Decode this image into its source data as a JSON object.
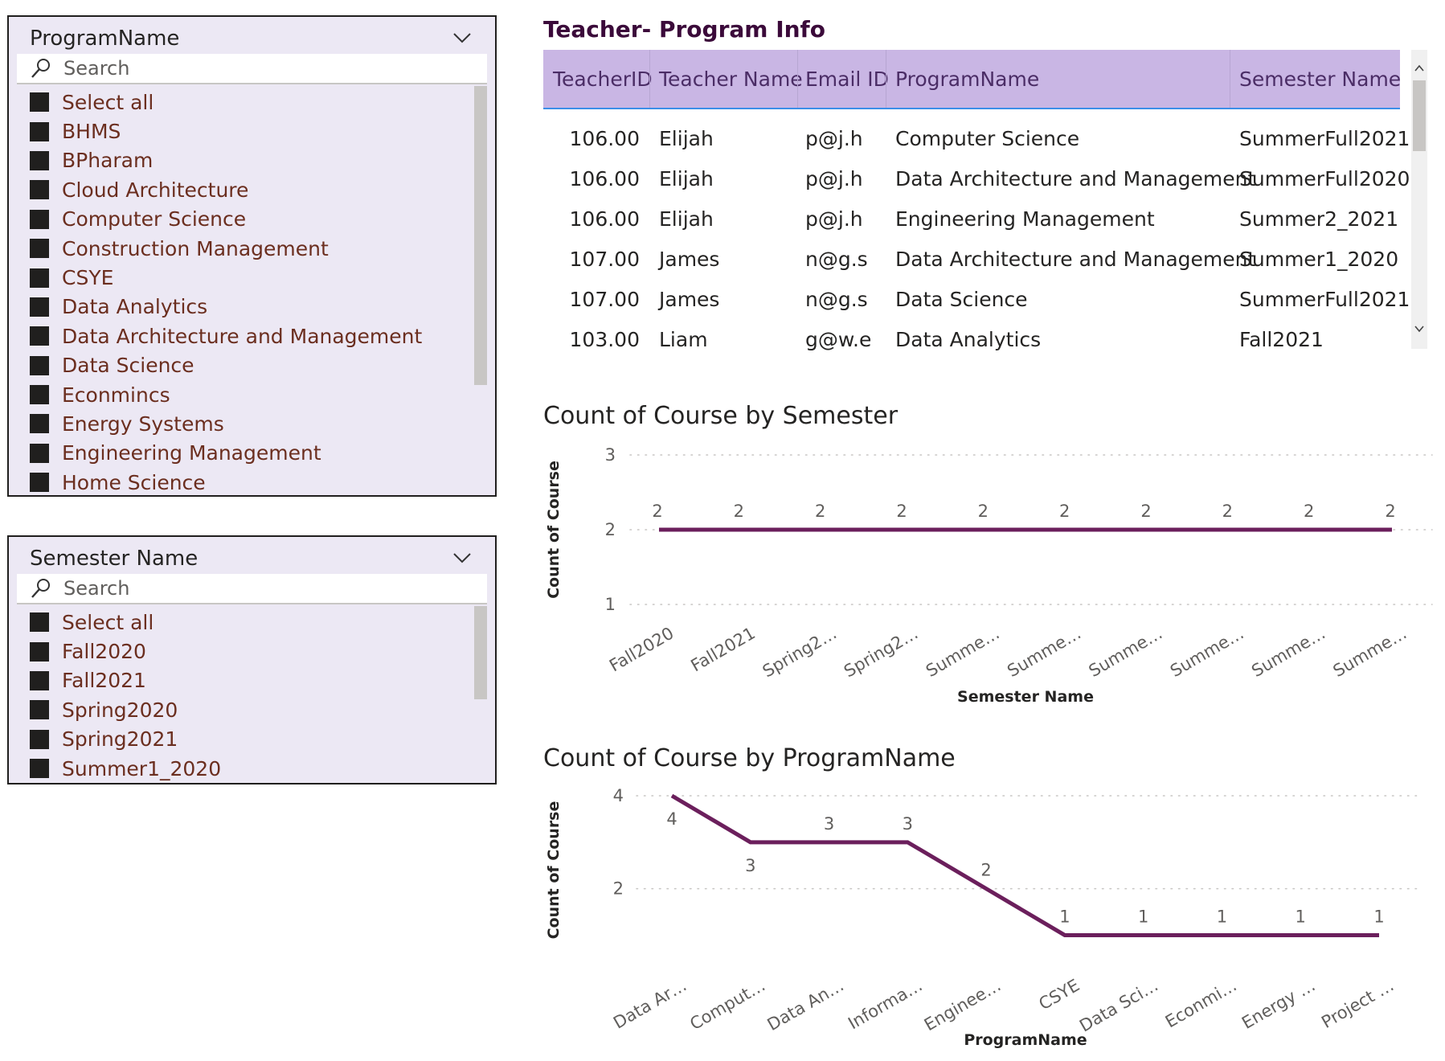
{
  "program_slicer": {
    "title": "ProgramName",
    "search_placeholder": "Search",
    "items": [
      "Select all",
      "BHMS",
      "BPharam",
      "Cloud Architecture",
      "Computer Science",
      "Construction Management",
      "CSYE",
      "Data Analytics",
      "Data Architecture and Management",
      "Data Science",
      "Econmincs",
      "Energy Systems",
      "Engineering Management",
      "Home Science"
    ]
  },
  "semester_slicer": {
    "title": "Semester Name",
    "search_placeholder": "Search",
    "items": [
      "Select all",
      "Fall2020",
      "Fall2021",
      "Spring2020",
      "Spring2021",
      "Summer1_2020"
    ]
  },
  "teacher_table": {
    "title": "Teacher- Program Info",
    "columns": [
      "TeacherID",
      "Teacher Name",
      "Email ID",
      "ProgramName",
      "Semester Name"
    ],
    "rows": [
      [
        "106.00",
        "Elijah",
        "p@j.h",
        "Computer Science",
        "SummerFull2021"
      ],
      [
        "106.00",
        "Elijah",
        "p@j.h",
        "Data Architecture and Management",
        "SummerFull2020"
      ],
      [
        "106.00",
        "Elijah",
        "p@j.h",
        "Engineering Management",
        "Summer2_2021"
      ],
      [
        "107.00",
        "James",
        "n@g.s",
        "Data Architecture and Management",
        "Summer1_2020"
      ],
      [
        "107.00",
        "James",
        "n@g.s",
        "Data Science",
        "SummerFull2021"
      ],
      [
        "103.00",
        "Liam",
        "g@w.e",
        "Data Analytics",
        "Fall2021"
      ]
    ]
  },
  "chart_data": [
    {
      "type": "line",
      "title": "Count of Course by Semester",
      "xlabel": "Semester Name",
      "ylabel": "Count of Course",
      "categories": [
        "Fall2020",
        "Fall2021",
        "Spring2…",
        "Spring2…",
        "Summe…",
        "Summe…",
        "Summe…",
        "Summe…",
        "Summe…",
        "Summe…"
      ],
      "values": [
        2,
        2,
        2,
        2,
        2,
        2,
        2,
        2,
        2,
        2
      ],
      "yticks": [
        3,
        2,
        1
      ],
      "ylim": [
        1,
        3
      ],
      "grid": true,
      "line_color": "#6b1f5c"
    },
    {
      "type": "line",
      "title": "Count of Course by ProgramName",
      "xlabel": "ProgramName",
      "ylabel": "Count of Course",
      "categories": [
        "Data Ar…",
        "Comput…",
        "Data An…",
        "Informa…",
        "Enginee…",
        "CSYE",
        "Data Sci…",
        "Econmi…",
        "Energy …",
        "Project …"
      ],
      "values": [
        4,
        3,
        3,
        3,
        2,
        1,
        1,
        1,
        1,
        1
      ],
      "yticks": [
        4,
        2
      ],
      "ylim": [
        0.8,
        4
      ],
      "grid": true,
      "line_color": "#6b1f5c"
    }
  ]
}
